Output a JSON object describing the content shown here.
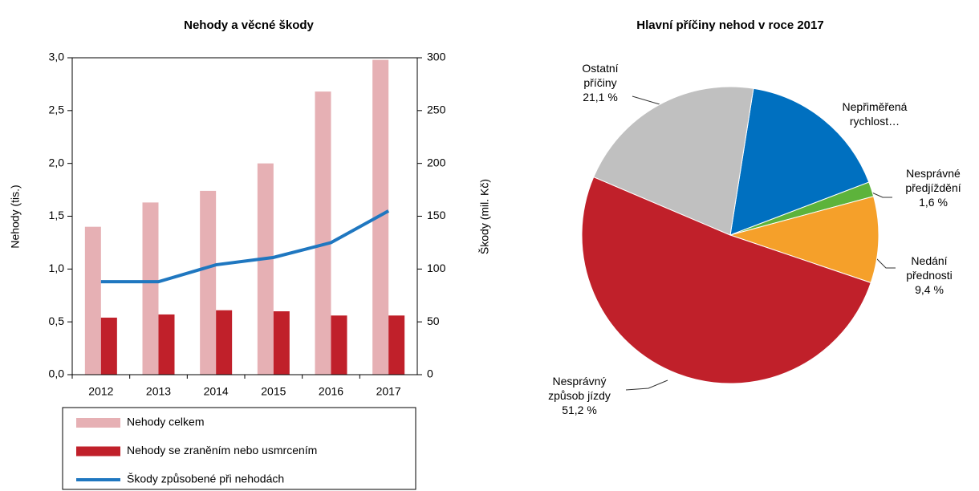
{
  "chart_data": [
    {
      "type": "bar",
      "title": "Nehody a věcné škody",
      "y_label": "Nehody (tis.)",
      "y2_label": "Škody (mil. Kč)",
      "categories": [
        "2012",
        "2013",
        "2014",
        "2015",
        "2016",
        "2017"
      ],
      "series": [
        {
          "name": "Nehody celkem",
          "type": "bar",
          "color": "#e6b0b4",
          "values": [
            1.4,
            1.63,
            1.74,
            2.0,
            2.68,
            2.98
          ]
        },
        {
          "name": "Nehody se zraněním nebo usmrcením",
          "type": "bar",
          "color": "#c0202a",
          "values": [
            0.54,
            0.57,
            0.61,
            0.6,
            0.56,
            0.56
          ]
        },
        {
          "name": "Škody způsobené při nehodách",
          "type": "line",
          "axis": "y2",
          "color": "#1f77c0",
          "values": [
            88,
            88,
            104,
            111,
            125,
            155
          ]
        }
      ],
      "ylim": [
        0,
        3
      ],
      "yticks": [
        {
          "value": 0,
          "label": "0,0"
        },
        {
          "value": 0.5,
          "label": "0,5"
        },
        {
          "value": 1,
          "label": "1,0"
        },
        {
          "value": 1.5,
          "label": "1,5"
        },
        {
          "value": 2,
          "label": "2,0"
        },
        {
          "value": 2.5,
          "label": "2,5"
        },
        {
          "value": 3,
          "label": "3,0"
        }
      ],
      "y2lim": [
        0,
        300
      ],
      "y2ticks": [
        0,
        50,
        100,
        150,
        200,
        250,
        300
      ],
      "grid": false
    },
    {
      "type": "pie",
      "title": "Hlavní příčiny nehod v roce 2017",
      "categories": [
        "Nepřiměřená rychlost…",
        "Nesprávné předjíždění",
        "Nedání přednosti",
        "Nesprávný způsob jízdy",
        "Ostatní příčiny"
      ],
      "values": [
        16.7,
        1.6,
        9.4,
        51.2,
        21.1
      ],
      "value_labels": [
        null,
        "1,6 %",
        "9,4 %",
        "51,2 %",
        "21,1 %"
      ],
      "colors": [
        "#0070c0",
        "#5db33b",
        "#f5a02a",
        "#c0202a",
        "#c0c0c0"
      ]
    }
  ]
}
